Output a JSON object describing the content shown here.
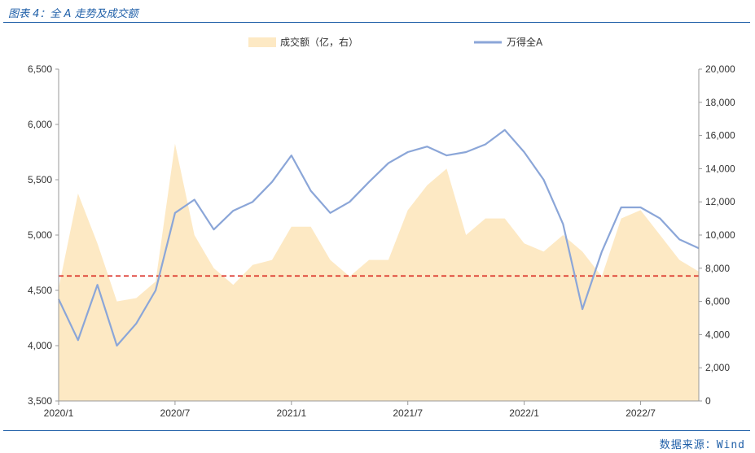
{
  "header": {
    "title": "图表 4：全 A 走势及成交额"
  },
  "footer": {
    "source": "数据来源：Wind"
  },
  "colors": {
    "line": "#8ba6d8",
    "area": "#fde9c4",
    "threshold": "#d9251c",
    "brand": "#1f5fa8"
  },
  "chart_data": {
    "type": "line",
    "x_tick_labels": [
      "2020/1",
      "2020/7",
      "2021/1",
      "2021/7",
      "2022/1",
      "2022/7"
    ],
    "x_range": [
      "2020/1",
      "2022/10"
    ],
    "y_left": {
      "ylim": [
        3500,
        6500
      ],
      "ticks": [
        "3,500",
        "4,000",
        "4,500",
        "5,000",
        "5,500",
        "6,000",
        "6,500"
      ]
    },
    "y_right": {
      "ylim": [
        0,
        20000
      ],
      "ticks": [
        "0",
        "2,000",
        "4,000",
        "6,000",
        "8,000",
        "10,000",
        "12,000",
        "14,000",
        "16,000",
        "18,000",
        "20,000"
      ]
    },
    "threshold": {
      "axis": "left",
      "value": 4630,
      "style": "dashed"
    },
    "legend": {
      "placement": "top-center"
    },
    "series": [
      {
        "name": "成交额（亿，右）",
        "type": "area",
        "axis": "right",
        "x": [
          "2020/1",
          "2020/2",
          "2020/3",
          "2020/4",
          "2020/5",
          "2020/6",
          "2020/7",
          "2020/8",
          "2020/9",
          "2020/10",
          "2020/11",
          "2020/12",
          "2021/1",
          "2021/2",
          "2021/3",
          "2021/4",
          "2021/5",
          "2021/6",
          "2021/7",
          "2021/8",
          "2021/9",
          "2021/10",
          "2021/11",
          "2021/12",
          "2022/1",
          "2022/2",
          "2022/3",
          "2022/4",
          "2022/5",
          "2022/6",
          "2022/7",
          "2022/8",
          "2022/9",
          "2022/10"
        ],
        "values": [
          6800,
          12500,
          9500,
          6000,
          6200,
          7200,
          15500,
          10000,
          8000,
          7000,
          8200,
          8500,
          10500,
          10500,
          8500,
          7500,
          8500,
          8500,
          11500,
          13000,
          14000,
          10000,
          11000,
          11000,
          9500,
          9000,
          10000,
          9000,
          7500,
          11000,
          11500,
          10000,
          8500,
          7800
        ]
      },
      {
        "name": "万得全A",
        "type": "line",
        "axis": "left",
        "x": [
          "2020/1",
          "2020/2",
          "2020/3",
          "2020/4",
          "2020/5",
          "2020/6",
          "2020/7",
          "2020/8",
          "2020/9",
          "2020/10",
          "2020/11",
          "2020/12",
          "2021/1",
          "2021/2",
          "2021/3",
          "2021/4",
          "2021/5",
          "2021/6",
          "2021/7",
          "2021/8",
          "2021/9",
          "2021/10",
          "2021/11",
          "2021/12",
          "2022/1",
          "2022/2",
          "2022/3",
          "2022/4",
          "2022/5",
          "2022/6",
          "2022/7",
          "2022/8",
          "2022/9",
          "2022/10"
        ],
        "values": [
          4420,
          4050,
          4550,
          4000,
          4200,
          4500,
          5200,
          5320,
          5050,
          5220,
          5300,
          5480,
          5720,
          5400,
          5200,
          5300,
          5480,
          5650,
          5750,
          5800,
          5720,
          5750,
          5820,
          5950,
          5750,
          5500,
          5100,
          4330,
          4850,
          5250,
          5250,
          5150,
          4960,
          4880
        ]
      }
    ]
  }
}
